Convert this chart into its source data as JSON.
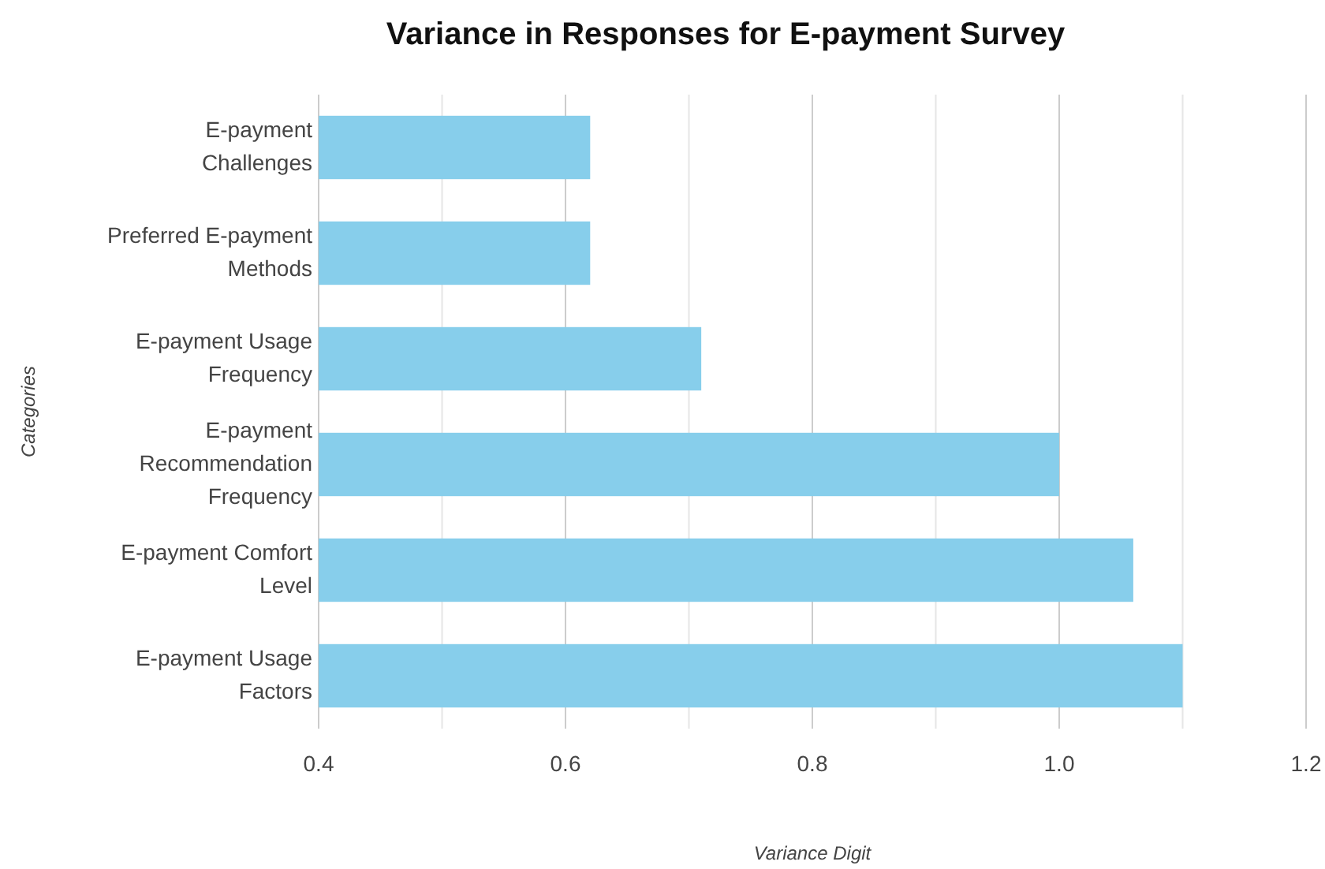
{
  "chart_data": {
    "type": "bar",
    "orientation": "horizontal",
    "title": "Variance in Responses for E-payment Survey",
    "xlabel": "Variance Digit",
    "ylabel": "Categories",
    "categories": [
      "E-payment Challenges",
      "Preferred E-payment Methods",
      "E-payment Usage Frequency",
      "E-payment Recommendation Frequency",
      "E-payment Comfort Level",
      "E-payment Usage Factors"
    ],
    "values": [
      0.62,
      0.62,
      0.71,
      1.0,
      1.06,
      1.1
    ],
    "color": "#87ceeb",
    "xlim": [
      0.4,
      1.2
    ],
    "xticks": [
      0.4,
      {
        "value": 0.5,
        "label": null
      },
      0.6,
      {
        "value": 0.7,
        "label": null
      },
      0.8,
      {
        "value": 0.9,
        "label": null
      },
      {
        "value": 1.0,
        "label": "1.0"
      },
      {
        "value": 1.1,
        "label": null
      },
      1.2
    ],
    "grid": "x"
  }
}
